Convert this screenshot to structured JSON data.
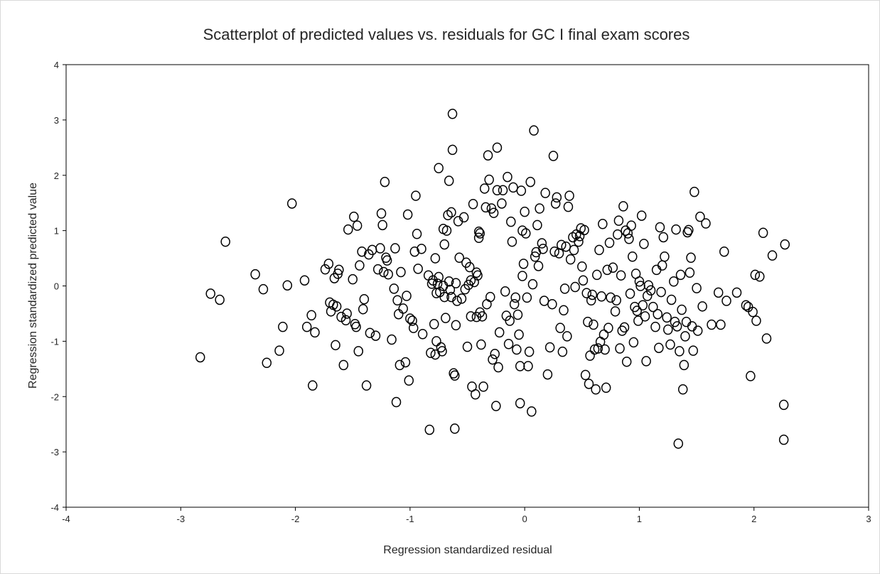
{
  "chart_data": {
    "type": "scatter",
    "title": "Scatterplot of predicted values vs. residuals for GC I final exam scores",
    "xlabel": "Regression standardized residual",
    "ylabel": "Regression standardized predicted value",
    "xlim": [
      -4,
      3
    ],
    "ylim": [
      -4,
      4
    ],
    "xticks": [
      -4,
      -3,
      -2,
      -1,
      0,
      1,
      2,
      3
    ],
    "yticks": [
      -4,
      -3,
      -2,
      -1,
      0,
      1,
      2,
      3,
      4
    ],
    "xtick_labels": [
      "-4",
      "-3",
      "-2",
      "-1",
      "0",
      "1",
      "2",
      "3"
    ],
    "ytick_labels": [
      "-4",
      "-3",
      "-2",
      "-1",
      "0",
      "1",
      "2",
      "3",
      "4"
    ],
    "grid": false,
    "legend": "none",
    "marker": "open-circle",
    "marker_color": "#000000",
    "points": [
      [
        -2.83,
        -1.29
      ],
      [
        -2.74,
        -0.14
      ],
      [
        -2.66,
        -0.25
      ],
      [
        -2.61,
        0.8
      ],
      [
        -2.35,
        0.21
      ],
      [
        -2.28,
        -0.06
      ],
      [
        -2.25,
        -1.39
      ],
      [
        -2.14,
        -1.17
      ],
      [
        -2.11,
        -0.74
      ],
      [
        -2.07,
        0.01
      ],
      [
        -2.03,
        1.49
      ],
      [
        -1.92,
        0.1
      ],
      [
        -1.9,
        -0.74
      ],
      [
        -1.86,
        -0.53
      ],
      [
        -1.85,
        -1.8
      ],
      [
        -1.83,
        -0.84
      ],
      [
        -1.74,
        0.3
      ],
      [
        -1.71,
        0.4
      ],
      [
        -1.7,
        -0.3
      ],
      [
        -1.69,
        -0.46
      ],
      [
        -1.67,
        -0.34
      ],
      [
        -1.66,
        0.14
      ],
      [
        -1.65,
        -1.07
      ],
      [
        -1.64,
        -0.37
      ],
      [
        -1.63,
        0.22
      ],
      [
        -1.62,
        0.29
      ],
      [
        -1.6,
        -0.56
      ],
      [
        -1.58,
        -1.43
      ],
      [
        -1.56,
        -0.62
      ],
      [
        -1.55,
        -0.5
      ],
      [
        -1.54,
        1.02
      ],
      [
        -1.5,
        0.12
      ],
      [
        -1.49,
        1.25
      ],
      [
        -1.48,
        -0.69
      ],
      [
        -1.47,
        -0.74
      ],
      [
        -1.46,
        1.09
      ],
      [
        -1.45,
        -1.18
      ],
      [
        -1.44,
        0.37
      ],
      [
        -1.42,
        0.62
      ],
      [
        -1.41,
        -0.42
      ],
      [
        -1.4,
        -0.24
      ],
      [
        -1.38,
        -1.8
      ],
      [
        -1.36,
        0.57
      ],
      [
        -1.35,
        -0.85
      ],
      [
        -1.33,
        0.65
      ],
      [
        -1.3,
        -0.9
      ],
      [
        -1.28,
        0.3
      ],
      [
        -1.26,
        0.68
      ],
      [
        -1.25,
        1.31
      ],
      [
        -1.24,
        1.1
      ],
      [
        -1.23,
        0.25
      ],
      [
        -1.22,
        1.88
      ],
      [
        -1.21,
        0.51
      ],
      [
        -1.2,
        0.46
      ],
      [
        -1.19,
        0.21
      ],
      [
        -1.16,
        -0.97
      ],
      [
        -1.14,
        -0.05
      ],
      [
        -1.13,
        0.68
      ],
      [
        -1.12,
        -2.1
      ],
      [
        -1.11,
        -0.26
      ],
      [
        -1.1,
        -0.51
      ],
      [
        -1.09,
        -1.43
      ],
      [
        -1.08,
        0.25
      ],
      [
        -1.06,
        -0.41
      ],
      [
        -1.04,
        -1.38
      ],
      [
        -1.03,
        -0.18
      ],
      [
        -1.02,
        1.29
      ],
      [
        -1.01,
        -1.71
      ],
      [
        -1.0,
        -0.59
      ],
      [
        -0.98,
        -0.63
      ],
      [
        -0.97,
        -0.76
      ],
      [
        -0.96,
        0.62
      ],
      [
        -0.95,
        1.63
      ],
      [
        -0.94,
        0.94
      ],
      [
        -0.93,
        0.31
      ],
      [
        -0.9,
        0.67
      ],
      [
        -0.89,
        -0.87
      ],
      [
        -0.84,
        0.19
      ],
      [
        -0.83,
        -2.6
      ],
      [
        -0.82,
        -1.21
      ],
      [
        -0.81,
        0.04
      ],
      [
        -0.8,
        0.1
      ],
      [
        -0.79,
        -0.69
      ],
      [
        -0.78,
        -1.24
      ],
      [
        -0.78,
        0.5
      ],
      [
        -0.77,
        -0.13
      ],
      [
        -0.77,
        -1.0
      ],
      [
        -0.76,
        0.04
      ],
      [
        -0.75,
        0.16
      ],
      [
        -0.75,
        2.13
      ],
      [
        -0.74,
        -0.11
      ],
      [
        -0.73,
        -1.11
      ],
      [
        -0.72,
        -1.18
      ],
      [
        -0.71,
        1.03
      ],
      [
        -0.71,
        0.0
      ],
      [
        -0.7,
        -0.2
      ],
      [
        -0.7,
        0.75
      ],
      [
        -0.69,
        -0.58
      ],
      [
        -0.68,
        1.0
      ],
      [
        -0.67,
        1.28
      ],
      [
        -0.66,
        0.08
      ],
      [
        -0.66,
        1.9
      ],
      [
        -0.65,
        -0.07
      ],
      [
        -0.64,
        1.33
      ],
      [
        -0.64,
        -0.2
      ],
      [
        -0.63,
        3.11
      ],
      [
        -0.63,
        2.46
      ],
      [
        -0.62,
        -1.58
      ],
      [
        -0.61,
        -1.62
      ],
      [
        -0.61,
        -2.58
      ],
      [
        -0.6,
        0.05
      ],
      [
        -0.6,
        -0.71
      ],
      [
        -0.59,
        -0.27
      ],
      [
        -0.58,
        1.17
      ],
      [
        -0.57,
        0.51
      ],
      [
        -0.55,
        -0.23
      ],
      [
        -0.53,
        1.24
      ],
      [
        -0.52,
        -0.06
      ],
      [
        -0.51,
        0.42
      ],
      [
        -0.5,
        -1.1
      ],
      [
        -0.49,
        0.02
      ],
      [
        -0.48,
        0.34
      ],
      [
        -0.47,
        0.1
      ],
      [
        -0.47,
        -0.55
      ],
      [
        -0.46,
        -1.82
      ],
      [
        -0.45,
        1.48
      ],
      [
        -0.44,
        0.07
      ],
      [
        -0.43,
        -1.96
      ],
      [
        -0.42,
        0.24
      ],
      [
        -0.42,
        -0.56
      ],
      [
        -0.41,
        0.19
      ],
      [
        -0.4,
        0.87
      ],
      [
        -0.4,
        0.98
      ],
      [
        -0.39,
        0.95
      ],
      [
        -0.39,
        -0.48
      ],
      [
        -0.38,
        -1.06
      ],
      [
        -0.37,
        -0.55
      ],
      [
        -0.36,
        -1.82
      ],
      [
        -0.35,
        1.76
      ],
      [
        -0.34,
        1.42
      ],
      [
        -0.33,
        -0.33
      ],
      [
        -0.32,
        2.36
      ],
      [
        -0.31,
        1.92
      ],
      [
        -0.3,
        -0.2
      ],
      [
        -0.29,
        1.4
      ],
      [
        -0.28,
        -1.33
      ],
      [
        -0.27,
        1.32
      ],
      [
        -0.26,
        -1.23
      ],
      [
        -0.25,
        -2.17
      ],
      [
        -0.24,
        1.73
      ],
      [
        -0.24,
        2.5
      ],
      [
        -0.23,
        -1.47
      ],
      [
        -0.22,
        -0.84
      ],
      [
        -0.2,
        1.49
      ],
      [
        -0.19,
        1.73
      ],
      [
        -0.17,
        -0.1
      ],
      [
        -0.16,
        -0.54
      ],
      [
        -0.15,
        1.97
      ],
      [
        -0.14,
        -1.05
      ],
      [
        -0.13,
        -0.63
      ],
      [
        -0.12,
        1.16
      ],
      [
        -0.11,
        0.8
      ],
      [
        -0.1,
        1.78
      ],
      [
        -0.09,
        -0.33
      ],
      [
        -0.08,
        -0.21
      ],
      [
        -0.07,
        -1.15
      ],
      [
        -0.06,
        -0.52
      ],
      [
        -0.05,
        -0.88
      ],
      [
        -0.04,
        -2.12
      ],
      [
        -0.04,
        -1.45
      ],
      [
        -0.03,
        1.72
      ],
      [
        -0.02,
        0.18
      ],
      [
        -0.02,
        1.0
      ],
      [
        -0.01,
        0.4
      ],
      [
        0.0,
        1.34
      ],
      [
        0.01,
        0.95
      ],
      [
        0.02,
        -0.21
      ],
      [
        0.03,
        -1.45
      ],
      [
        0.04,
        -1.19
      ],
      [
        0.05,
        1.88
      ],
      [
        0.06,
        -2.27
      ],
      [
        0.07,
        0.03
      ],
      [
        0.08,
        2.81
      ],
      [
        0.09,
        0.53
      ],
      [
        0.1,
        0.61
      ],
      [
        0.11,
        1.1
      ],
      [
        0.12,
        0.36
      ],
      [
        0.13,
        1.4
      ],
      [
        0.15,
        0.77
      ],
      [
        0.16,
        0.67
      ],
      [
        0.17,
        -0.27
      ],
      [
        0.18,
        1.68
      ],
      [
        0.2,
        -1.6
      ],
      [
        0.22,
        -1.11
      ],
      [
        0.24,
        -0.33
      ],
      [
        0.25,
        2.35
      ],
      [
        0.26,
        0.62
      ],
      [
        0.27,
        1.49
      ],
      [
        0.28,
        1.6
      ],
      [
        0.3,
        0.59
      ],
      [
        0.31,
        -0.76
      ],
      [
        0.32,
        0.74
      ],
      [
        0.33,
        -1.19
      ],
      [
        0.34,
        -0.44
      ],
      [
        0.35,
        -0.05
      ],
      [
        0.36,
        0.71
      ],
      [
        0.37,
        -0.91
      ],
      [
        0.38,
        1.43
      ],
      [
        0.39,
        1.63
      ],
      [
        0.4,
        0.48
      ],
      [
        0.42,
        0.88
      ],
      [
        0.43,
        0.65
      ],
      [
        0.44,
        -0.02
      ],
      [
        0.45,
        0.93
      ],
      [
        0.47,
        0.8
      ],
      [
        0.48,
        0.9
      ],
      [
        0.49,
        1.04
      ],
      [
        0.5,
        0.35
      ],
      [
        0.51,
        0.1
      ],
      [
        0.52,
        1.01
      ],
      [
        0.53,
        -1.61
      ],
      [
        0.54,
        -0.13
      ],
      [
        0.55,
        -0.65
      ],
      [
        0.56,
        -1.77
      ],
      [
        0.57,
        -1.26
      ],
      [
        0.58,
        -0.26
      ],
      [
        0.59,
        -0.16
      ],
      [
        0.6,
        -0.7
      ],
      [
        0.61,
        -1.15
      ],
      [
        0.62,
        -1.87
      ],
      [
        0.63,
        0.2
      ],
      [
        0.64,
        -1.13
      ],
      [
        0.65,
        0.65
      ],
      [
        0.66,
        -1.01
      ],
      [
        0.67,
        -0.19
      ],
      [
        0.68,
        1.12
      ],
      [
        0.69,
        -0.88
      ],
      [
        0.7,
        -1.15
      ],
      [
        0.71,
        -1.84
      ],
      [
        0.72,
        0.29
      ],
      [
        0.73,
        -0.76
      ],
      [
        0.74,
        0.78
      ],
      [
        0.75,
        -0.21
      ],
      [
        0.77,
        0.33
      ],
      [
        0.79,
        -0.46
      ],
      [
        0.8,
        -0.26
      ],
      [
        0.81,
        0.93
      ],
      [
        0.82,
        1.18
      ],
      [
        0.83,
        -1.13
      ],
      [
        0.84,
        0.19
      ],
      [
        0.85,
        -0.81
      ],
      [
        0.86,
        1.44
      ],
      [
        0.87,
        -0.75
      ],
      [
        0.88,
        1.0
      ],
      [
        0.89,
        -1.37
      ],
      [
        0.9,
        0.95
      ],
      [
        0.91,
        0.85
      ],
      [
        0.92,
        -0.14
      ],
      [
        0.93,
        1.09
      ],
      [
        0.94,
        0.53
      ],
      [
        0.95,
        -1.02
      ],
      [
        0.96,
        -0.38
      ],
      [
        0.97,
        0.22
      ],
      [
        0.98,
        -0.45
      ],
      [
        0.99,
        -0.63
      ],
      [
        1.0,
        0.08
      ],
      [
        1.01,
        0.0
      ],
      [
        1.02,
        1.27
      ],
      [
        1.03,
        -0.35
      ],
      [
        1.04,
        0.76
      ],
      [
        1.05,
        -0.55
      ],
      [
        1.06,
        -1.36
      ],
      [
        1.07,
        -0.18
      ],
      [
        1.08,
        0.01
      ],
      [
        1.1,
        -0.08
      ],
      [
        1.12,
        -0.38
      ],
      [
        1.14,
        -0.74
      ],
      [
        1.15,
        0.29
      ],
      [
        1.16,
        -0.51
      ],
      [
        1.17,
        -1.12
      ],
      [
        1.18,
        1.06
      ],
      [
        1.19,
        -0.11
      ],
      [
        1.2,
        0.37
      ],
      [
        1.21,
        0.88
      ],
      [
        1.22,
        0.53
      ],
      [
        1.24,
        -0.57
      ],
      [
        1.25,
        -0.79
      ],
      [
        1.27,
        -1.06
      ],
      [
        1.28,
        -0.25
      ],
      [
        1.3,
        0.08
      ],
      [
        1.31,
        -0.65
      ],
      [
        1.32,
        1.02
      ],
      [
        1.33,
        -0.73
      ],
      [
        1.34,
        -2.85
      ],
      [
        1.35,
        -1.18
      ],
      [
        1.36,
        0.2
      ],
      [
        1.37,
        -0.43
      ],
      [
        1.38,
        -1.87
      ],
      [
        1.39,
        -1.43
      ],
      [
        1.4,
        -0.91
      ],
      [
        1.41,
        -0.65
      ],
      [
        1.42,
        0.97
      ],
      [
        1.43,
        1.01
      ],
      [
        1.44,
        0.24
      ],
      [
        1.45,
        0.51
      ],
      [
        1.46,
        -0.73
      ],
      [
        1.47,
        -1.17
      ],
      [
        1.48,
        1.7
      ],
      [
        1.5,
        -0.04
      ],
      [
        1.51,
        -0.81
      ],
      [
        1.53,
        1.25
      ],
      [
        1.55,
        -0.37
      ],
      [
        1.58,
        1.13
      ],
      [
        1.63,
        -0.7
      ],
      [
        1.69,
        -0.12
      ],
      [
        1.71,
        -0.7
      ],
      [
        1.74,
        0.62
      ],
      [
        1.76,
        -0.27
      ],
      [
        1.85,
        -0.12
      ],
      [
        1.93,
        -0.35
      ],
      [
        1.95,
        -0.38
      ],
      [
        1.97,
        -1.63
      ],
      [
        1.99,
        -0.47
      ],
      [
        2.01,
        0.2
      ],
      [
        2.02,
        -0.63
      ],
      [
        2.05,
        0.17
      ],
      [
        2.08,
        0.96
      ],
      [
        2.11,
        -0.95
      ],
      [
        2.16,
        0.55
      ],
      [
        2.26,
        -2.15
      ],
      [
        2.26,
        -2.78
      ],
      [
        2.27,
        0.75
      ]
    ]
  }
}
